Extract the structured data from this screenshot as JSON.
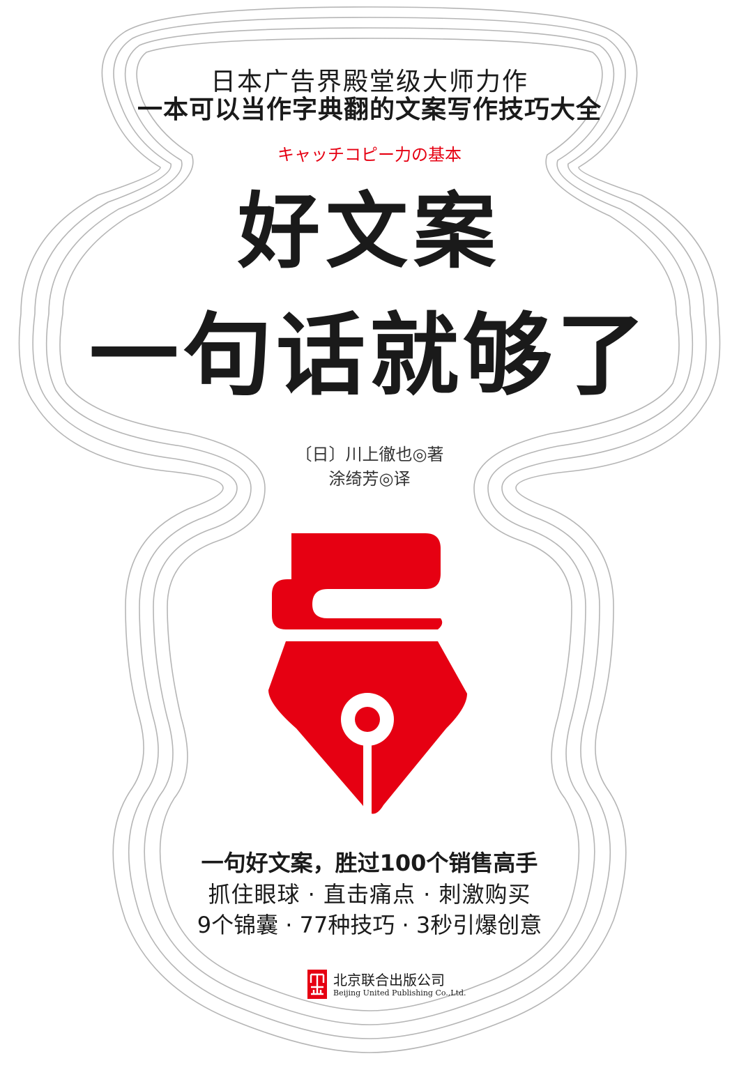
{
  "cover": {
    "tagline_line1": "日本广告界殿堂级大师力作",
    "tagline_line2": "一本可以当作字典翻的文案写作技巧大全",
    "subtitle_jp": "キャッチコピー力の基本",
    "title_line1": "好文案",
    "title_line2": "一句话就够了",
    "author": "〔日〕川上徹也◎著",
    "translator": "涂绮芳◎译",
    "slogan_line1": "一句好文案，胜过100个销售高手",
    "slogan_line2": "抓住眼球 · 直击痛点 · 刺激购买",
    "slogan_line3": "9个锦囊 · 77种技巧 · 3秒引爆创意",
    "illustration_icon": "fountain-pen-nib-icon"
  },
  "publisher": {
    "name_cn": "北京联合出版公司",
    "name_en": "Beijing United Publishing Co.,Ltd.",
    "logo_icon": "publisher-seal-icon"
  },
  "colors": {
    "accent_red": "#e60012",
    "text_black": "#1a1a1a",
    "outline_gray": "#b5b5b5",
    "background": "#ffffff"
  }
}
